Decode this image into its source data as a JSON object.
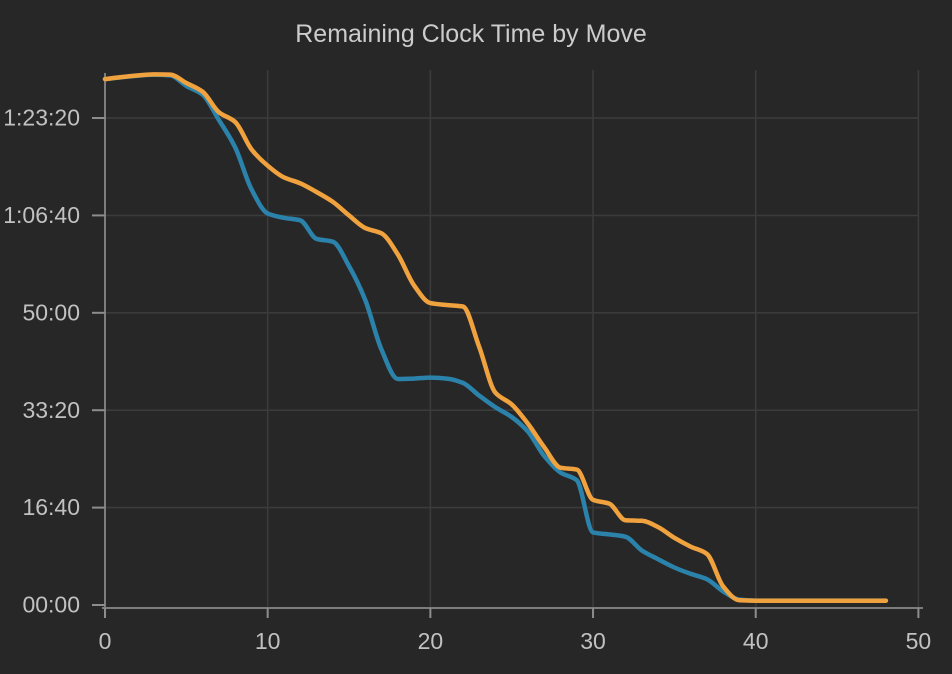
{
  "chart_data": {
    "type": "line",
    "title": "Remaining Clock Time by Move",
    "xlabel": "",
    "ylabel": "",
    "x_unit": "move",
    "y_unit": "seconds",
    "xlim": [
      0,
      50
    ],
    "ylim_seconds": [
      0,
      5493
    ],
    "grid": true,
    "legend": "none",
    "x": [
      0,
      1,
      2,
      3,
      4,
      5,
      6,
      7,
      8,
      9,
      10,
      11,
      12,
      13,
      14,
      15,
      16,
      17,
      18,
      19,
      20,
      21,
      22,
      23,
      24,
      25,
      26,
      27,
      28,
      29,
      30,
      31,
      32,
      33,
      34,
      35,
      36,
      37,
      38,
      39,
      40,
      41,
      42,
      43,
      44,
      45,
      46,
      47,
      48
    ],
    "series": [
      {
        "id": "blue-player",
        "color": "#2b82aa",
        "values_seconds": [
          5400,
          5418,
          5434,
          5444,
          5438,
          5330,
          5240,
          4980,
          4700,
          4270,
          4020,
          3975,
          3950,
          3760,
          3730,
          3480,
          3130,
          2620,
          2320,
          2325,
          2335,
          2325,
          2280,
          2150,
          2030,
          1930,
          1780,
          1530,
          1360,
          1280,
          745,
          725,
          700,
          560,
          470,
          385,
          320,
          265,
          140,
          55,
          45,
          45,
          45,
          45,
          45,
          45,
          45,
          45,
          45
        ]
      },
      {
        "id": "orange-player",
        "color": "#f0a23f",
        "values_seconds": [
          5400,
          5420,
          5437,
          5448,
          5446,
          5360,
          5270,
          5060,
          4960,
          4680,
          4510,
          4390,
          4330,
          4240,
          4140,
          4000,
          3870,
          3815,
          3600,
          3280,
          3100,
          3080,
          3065,
          2650,
          2180,
          2060,
          1860,
          1620,
          1410,
          1390,
          1080,
          1040,
          870,
          865,
          800,
          690,
          600,
          525,
          190,
          48,
          44,
          44,
          44,
          44,
          44,
          44,
          44,
          44,
          44
        ]
      }
    ],
    "x_ticks": [
      {
        "value": 0,
        "label": "0"
      },
      {
        "value": 10,
        "label": "10"
      },
      {
        "value": 20,
        "label": "20"
      },
      {
        "value": 30,
        "label": "30"
      },
      {
        "value": 40,
        "label": "40"
      },
      {
        "value": 50,
        "label": "50"
      }
    ],
    "y_ticks": [
      {
        "seconds": 0,
        "label": "00:00"
      },
      {
        "seconds": 1000,
        "label": "16:40"
      },
      {
        "seconds": 2000,
        "label": "33:20"
      },
      {
        "seconds": 3000,
        "label": "50:00"
      },
      {
        "seconds": 4000,
        "label": "1:06:40"
      },
      {
        "seconds": 5000,
        "label": "1:23:20"
      }
    ],
    "colors": {
      "background": "#272727",
      "gridline": "#3b3b3b",
      "axis_line": "#7d7d7d",
      "tick_mark": "#8d8d8d",
      "tick_label": "#c1c1c1",
      "title": "#cccccc"
    }
  }
}
